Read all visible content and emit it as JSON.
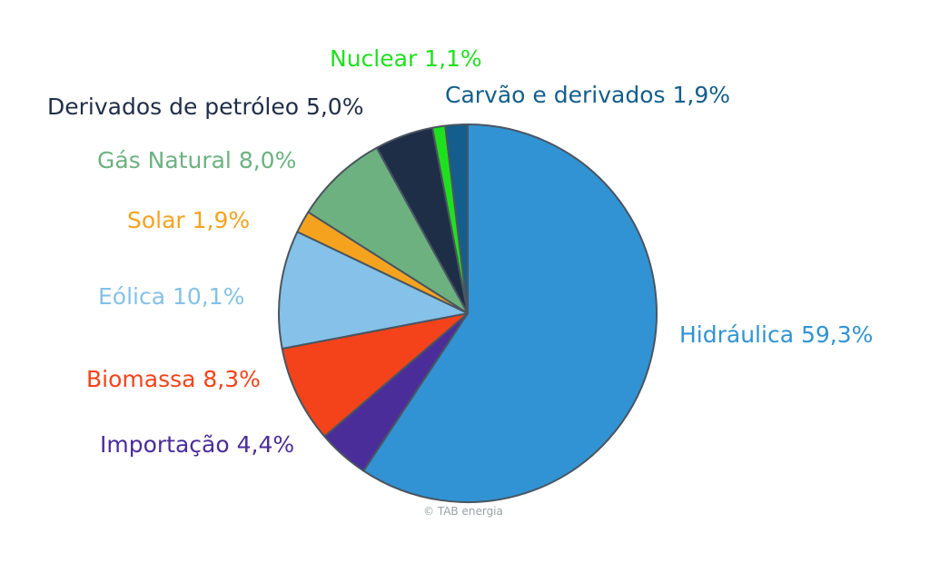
{
  "chart_data": {
    "type": "pie",
    "categories": [
      "Hidráulica",
      "Importação",
      "Biomassa",
      "Eólica",
      "Solar",
      "Gás Natural",
      "Derivados de petróleo",
      "Nuclear",
      "Carvão e derivados"
    ],
    "values": [
      59.3,
      4.4,
      8.3,
      10.1,
      1.9,
      8.0,
      5.0,
      1.1,
      1.9
    ],
    "labels": [
      "Hidráulica 59,3%",
      "Importação 4,4%",
      "Biomassa 8,3%",
      "Eólica 10,1%",
      "Solar 1,9%",
      "Gás Natural 8,0%",
      "Derivados de petróleo 5,0%",
      "Nuclear 1,1%",
      "Carvão e derivados 1,9%"
    ],
    "colors": [
      "#3193d3",
      "#4b2d9a",
      "#f4431a",
      "#85c1e8",
      "#f5a31f",
      "#6db180",
      "#1f2e47",
      "#1fe01f",
      "#135e8c"
    ],
    "start_angle_deg": 0,
    "direction": "clockwise",
    "legend": "none"
  },
  "credit": "© TAB energia"
}
